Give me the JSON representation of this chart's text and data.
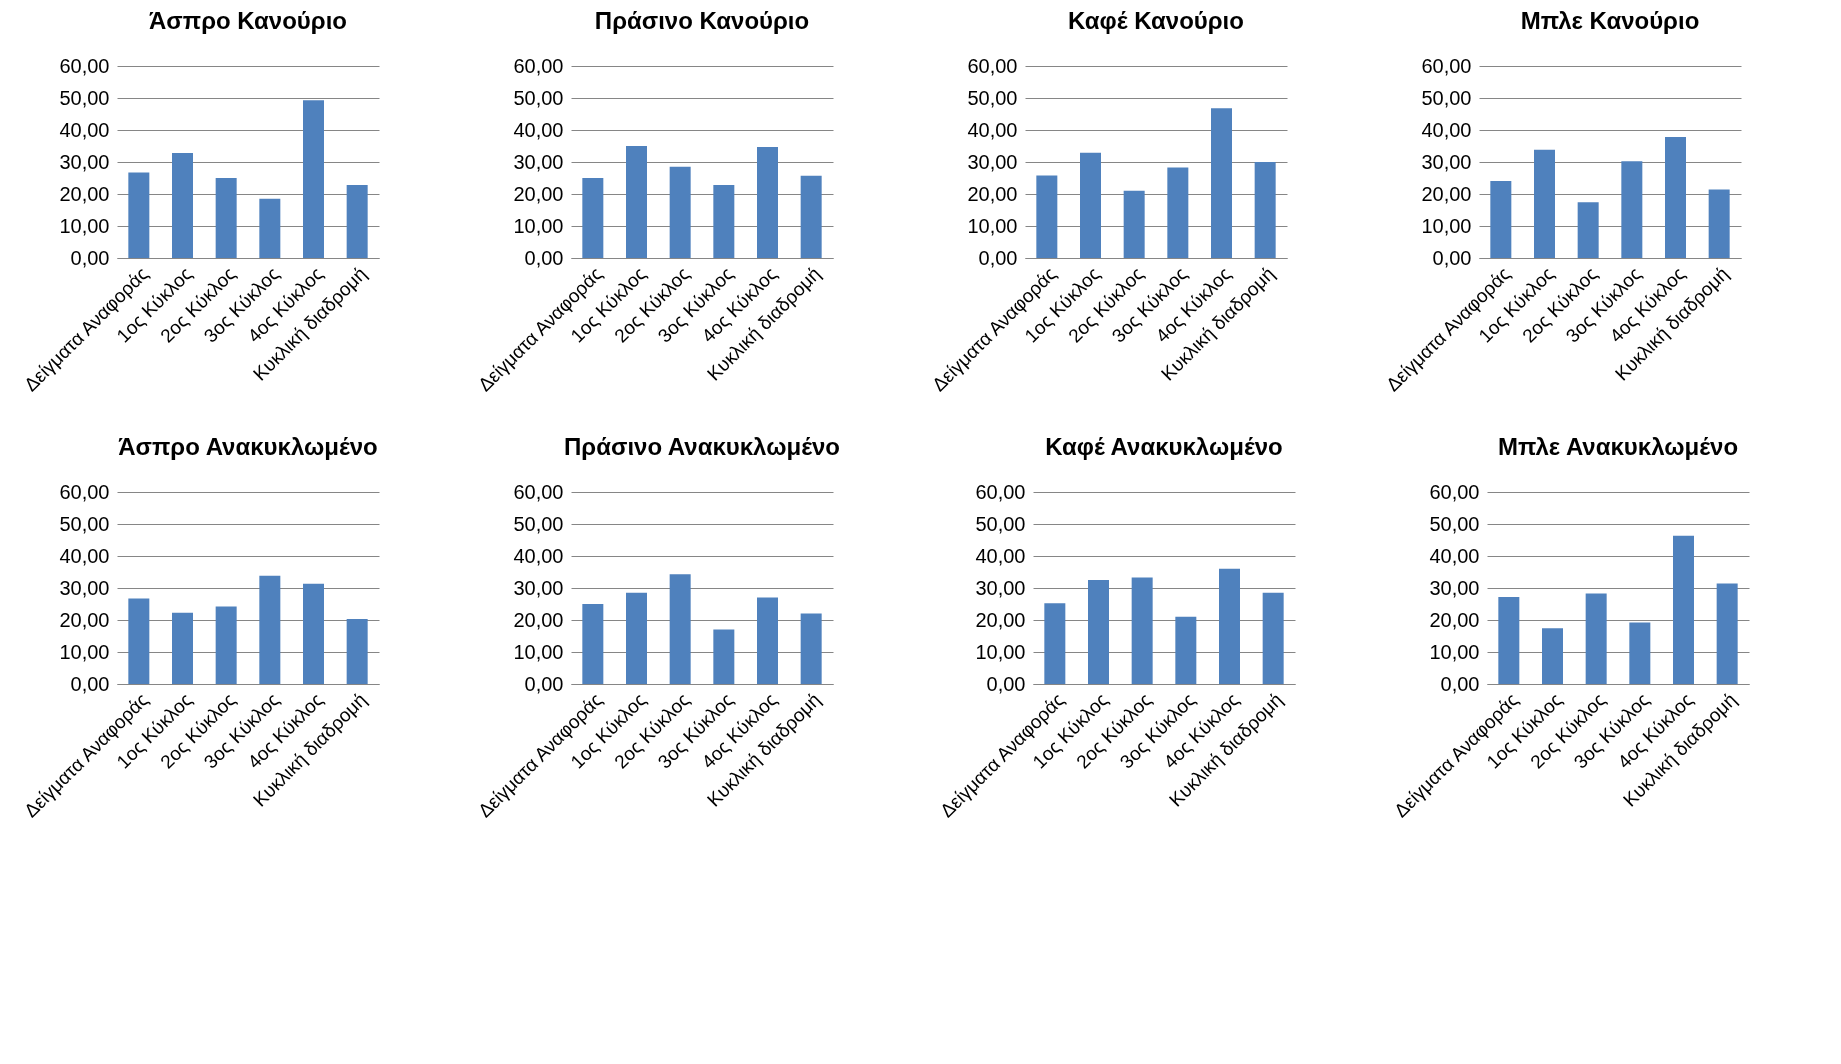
{
  "chart_data": [
    {
      "type": "bar",
      "title": "Άσπρο Κανούριο",
      "categories": [
        "Δείγματα Αναφοράς",
        "1ος Κύκλος",
        "2ος Κύκλος",
        "3ος Κύκλος",
        "4ος Κύκλος",
        "Κυκλική διαδρομή"
      ],
      "values": [
        26.7,
        32.8,
        25.0,
        18.5,
        49.3,
        22.8
      ],
      "color": "#4f81bd",
      "ylim": [
        0,
        60
      ],
      "yticks": [
        {
          "value": 0,
          "label": "0,00"
        },
        {
          "value": 10,
          "label": "10,00"
        },
        {
          "value": 20,
          "label": "20,00"
        },
        {
          "value": 30,
          "label": "30,00"
        },
        {
          "value": 40,
          "label": "40,00"
        },
        {
          "value": 50,
          "label": "50,00"
        },
        {
          "value": 60,
          "label": "60,00"
        }
      ],
      "grid": "y"
    },
    {
      "type": "bar",
      "title": "Πράσινο Κανούριο",
      "categories": [
        "Δείγματα Αναφοράς",
        "1ος Κύκλος",
        "2ος Κύκλος",
        "3ος Κύκλος",
        "4ος Κύκλος",
        "Κυκλική διαδρομή"
      ],
      "values": [
        25.0,
        35.0,
        28.5,
        22.8,
        34.7,
        25.7
      ],
      "color": "#4f81bd",
      "ylim": [
        0,
        60
      ],
      "yticks": [
        {
          "value": 0,
          "label": "0,00"
        },
        {
          "value": 10,
          "label": "10,00"
        },
        {
          "value": 20,
          "label": "20,00"
        },
        {
          "value": 30,
          "label": "30,00"
        },
        {
          "value": 40,
          "label": "40,00"
        },
        {
          "value": 50,
          "label": "50,00"
        },
        {
          "value": 60,
          "label": "60,00"
        }
      ],
      "grid": "y"
    },
    {
      "type": "bar",
      "title": "Καφέ Κανούριο",
      "categories": [
        "Δείγματα Αναφοράς",
        "1ος Κύκλος",
        "2ος Κύκλος",
        "3ος Κύκλος",
        "4ος Κύκλος",
        "Κυκλική διαδρομή"
      ],
      "values": [
        25.8,
        32.9,
        21.0,
        28.3,
        46.8,
        30.0
      ],
      "color": "#4f81bd",
      "ylim": [
        0,
        60
      ],
      "yticks": [
        {
          "value": 0,
          "label": "0,00"
        },
        {
          "value": 10,
          "label": "10,00"
        },
        {
          "value": 20,
          "label": "20,00"
        },
        {
          "value": 30,
          "label": "30,00"
        },
        {
          "value": 40,
          "label": "40,00"
        },
        {
          "value": 50,
          "label": "50,00"
        },
        {
          "value": 60,
          "label": "60,00"
        }
      ],
      "grid": "y"
    },
    {
      "type": "bar",
      "title": "Μπλε Κανούριο",
      "categories": [
        "Δείγματα Αναφοράς",
        "1ος Κύκλος",
        "2ος Κύκλος",
        "3ος Κύκλος",
        "4ος Κύκλος",
        "Κυκλική διαδρομή"
      ],
      "values": [
        24.1,
        33.8,
        17.4,
        30.2,
        37.8,
        21.4
      ],
      "color": "#4f81bd",
      "ylim": [
        0,
        60
      ],
      "yticks": [
        {
          "value": 0,
          "label": "0,00"
        },
        {
          "value": 10,
          "label": "10,00"
        },
        {
          "value": 20,
          "label": "20,00"
        },
        {
          "value": 30,
          "label": "30,00"
        },
        {
          "value": 40,
          "label": "40,00"
        },
        {
          "value": 50,
          "label": "50,00"
        },
        {
          "value": 60,
          "label": "60,00"
        }
      ],
      "grid": "y"
    },
    {
      "type": "bar",
      "title": "Άσπρο Ανακυκλωμένο",
      "categories": [
        "Δείγματα Αναφοράς",
        "1ος Κύκλος",
        "2ος Κύκλος",
        "3ος Κύκλος",
        "4ος Κύκλος",
        "Κυκλική διαδρομή"
      ],
      "values": [
        26.7,
        22.3,
        24.2,
        33.8,
        31.3,
        20.3
      ],
      "color": "#4f81bd",
      "ylim": [
        0,
        60
      ],
      "yticks": [
        {
          "value": 0,
          "label": "0,00"
        },
        {
          "value": 10,
          "label": "10,00"
        },
        {
          "value": 20,
          "label": "20,00"
        },
        {
          "value": 30,
          "label": "30,00"
        },
        {
          "value": 40,
          "label": "40,00"
        },
        {
          "value": 50,
          "label": "50,00"
        },
        {
          "value": 60,
          "label": "60,00"
        }
      ],
      "grid": "y"
    },
    {
      "type": "bar",
      "title": "Πράσινο Ανακυκλωμένο",
      "categories": [
        "Δείγματα Αναφοράς",
        "1ος Κύκλος",
        "2ος Κύκλος",
        "3ος Κύκλος",
        "4ος Κύκλος",
        "Κυκλική διαδρομή"
      ],
      "values": [
        25.0,
        28.5,
        34.3,
        17.0,
        27.0,
        22.0
      ],
      "color": "#4f81bd",
      "ylim": [
        0,
        60
      ],
      "yticks": [
        {
          "value": 0,
          "label": "0,00"
        },
        {
          "value": 10,
          "label": "10,00"
        },
        {
          "value": 20,
          "label": "20,00"
        },
        {
          "value": 30,
          "label": "30,00"
        },
        {
          "value": 40,
          "label": "40,00"
        },
        {
          "value": 50,
          "label": "50,00"
        },
        {
          "value": 60,
          "label": "60,00"
        }
      ],
      "grid": "y"
    },
    {
      "type": "bar",
      "title": "Καφέ Ανακυκλωμένο",
      "categories": [
        "Δείγματα Αναφοράς",
        "1ος Κύκλος",
        "2ος Κύκλος",
        "3ος Κύκλος",
        "4ος Κύκλος",
        "Κυκλική διαδρομή"
      ],
      "values": [
        25.2,
        32.5,
        33.3,
        21.0,
        36.0,
        28.5
      ],
      "color": "#4f81bd",
      "ylim": [
        0,
        60
      ],
      "yticks": [
        {
          "value": 0,
          "label": "0,00"
        },
        {
          "value": 10,
          "label": "10,00"
        },
        {
          "value": 20,
          "label": "20,00"
        },
        {
          "value": 30,
          "label": "30,00"
        },
        {
          "value": 40,
          "label": "40,00"
        },
        {
          "value": 50,
          "label": "50,00"
        },
        {
          "value": 60,
          "label": "60,00"
        }
      ],
      "grid": "y"
    },
    {
      "type": "bar",
      "title": "Μπλε Ανακυκλωμένο",
      "categories": [
        "Δείγματα Αναφοράς",
        "1ος Κύκλος",
        "2ος Κύκλος",
        "3ος Κύκλος",
        "4ος Κύκλος",
        "Κυκλική διαδρομή"
      ],
      "values": [
        27.2,
        17.4,
        28.3,
        19.2,
        46.3,
        31.4
      ],
      "color": "#4f81bd",
      "ylim": [
        0,
        60
      ],
      "yticks": [
        {
          "value": 0,
          "label": "0,00"
        },
        {
          "value": 10,
          "label": "10,00"
        },
        {
          "value": 20,
          "label": "20,00"
        },
        {
          "value": 30,
          "label": "30,00"
        },
        {
          "value": 40,
          "label": "40,00"
        },
        {
          "value": 50,
          "label": "50,00"
        },
        {
          "value": 60,
          "label": "60,00"
        }
      ],
      "grid": "y"
    }
  ]
}
